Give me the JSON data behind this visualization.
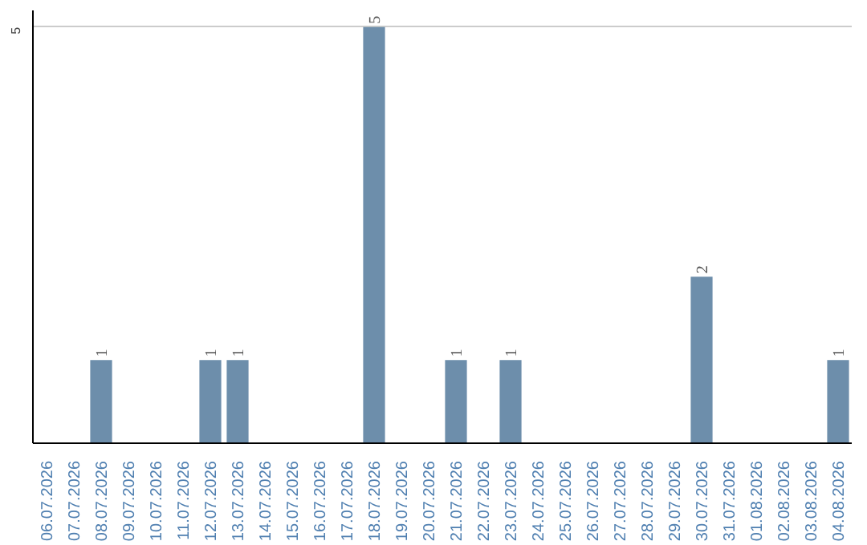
{
  "chart_data": {
    "type": "bar",
    "categories": [
      "06.07.2026",
      "07.07.2026",
      "08.07.2026",
      "09.07.2026",
      "10.07.2026",
      "11.07.2026",
      "12.07.2026",
      "13.07.2026",
      "14.07.2026",
      "15.07.2026",
      "16.07.2026",
      "17.07.2026",
      "18.07.2026",
      "19.07.2026",
      "20.07.2026",
      "21.07.2026",
      "22.07.2026",
      "23.07.2026",
      "24.07.2026",
      "25.07.2026",
      "26.07.2026",
      "27.07.2026",
      "28.07.2026",
      "29.07.2026",
      "30.07.2026",
      "31.07.2026",
      "01.08.2026",
      "02.08.2026",
      "03.08.2026",
      "04.08.2026"
    ],
    "values": [
      0,
      0,
      1,
      0,
      0,
      0,
      1,
      1,
      0,
      0,
      0,
      0,
      5,
      0,
      0,
      1,
      0,
      1,
      0,
      0,
      0,
      0,
      0,
      0,
      2,
      0,
      0,
      0,
      0,
      1
    ],
    "value_labels": [
      null,
      null,
      "1",
      null,
      null,
      null,
      "1",
      "1",
      null,
      null,
      null,
      null,
      "5",
      null,
      null,
      "1",
      null,
      "1",
      null,
      null,
      null,
      null,
      null,
      null,
      "2",
      null,
      null,
      null,
      null,
      "1"
    ],
    "color": "#6d8eab",
    "ylim": [
      0,
      5.2
    ],
    "yticks": [
      5
    ],
    "grid": "y"
  }
}
